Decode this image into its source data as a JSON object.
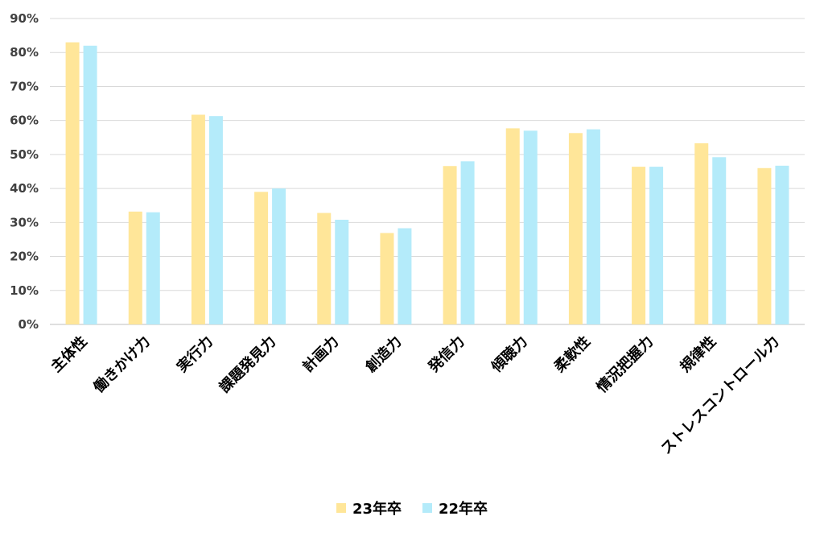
{
  "chart_data": {
    "type": "bar",
    "categories": [
      "主体性",
      "働きかけ力",
      "実行力",
      "課題発見力",
      "計画力",
      "創造力",
      "発信力",
      "傾聴力",
      "柔軟性",
      "情況把握力",
      "規律性",
      "ストレスコントロール力"
    ],
    "series": [
      {
        "name": "23年卒",
        "color": "#FFE699",
        "values": [
          83,
          33.2,
          61.7,
          39,
          32.8,
          26.9,
          46.6,
          57.7,
          56.3,
          46.4,
          53.3,
          46
        ]
      },
      {
        "name": "22年卒",
        "color": "#B4EBFA",
        "values": [
          82,
          33,
          61.3,
          40,
          30.8,
          28.3,
          48,
          57,
          57.4,
          46.4,
          49.2,
          46.7
        ]
      }
    ],
    "ylim": [
      0,
      90
    ],
    "yticks": [
      "0%",
      "10%",
      "20%",
      "30%",
      "40%",
      "50%",
      "60%",
      "70%",
      "80%",
      "90%"
    ],
    "grid": true,
    "legend_position": "bottom"
  }
}
